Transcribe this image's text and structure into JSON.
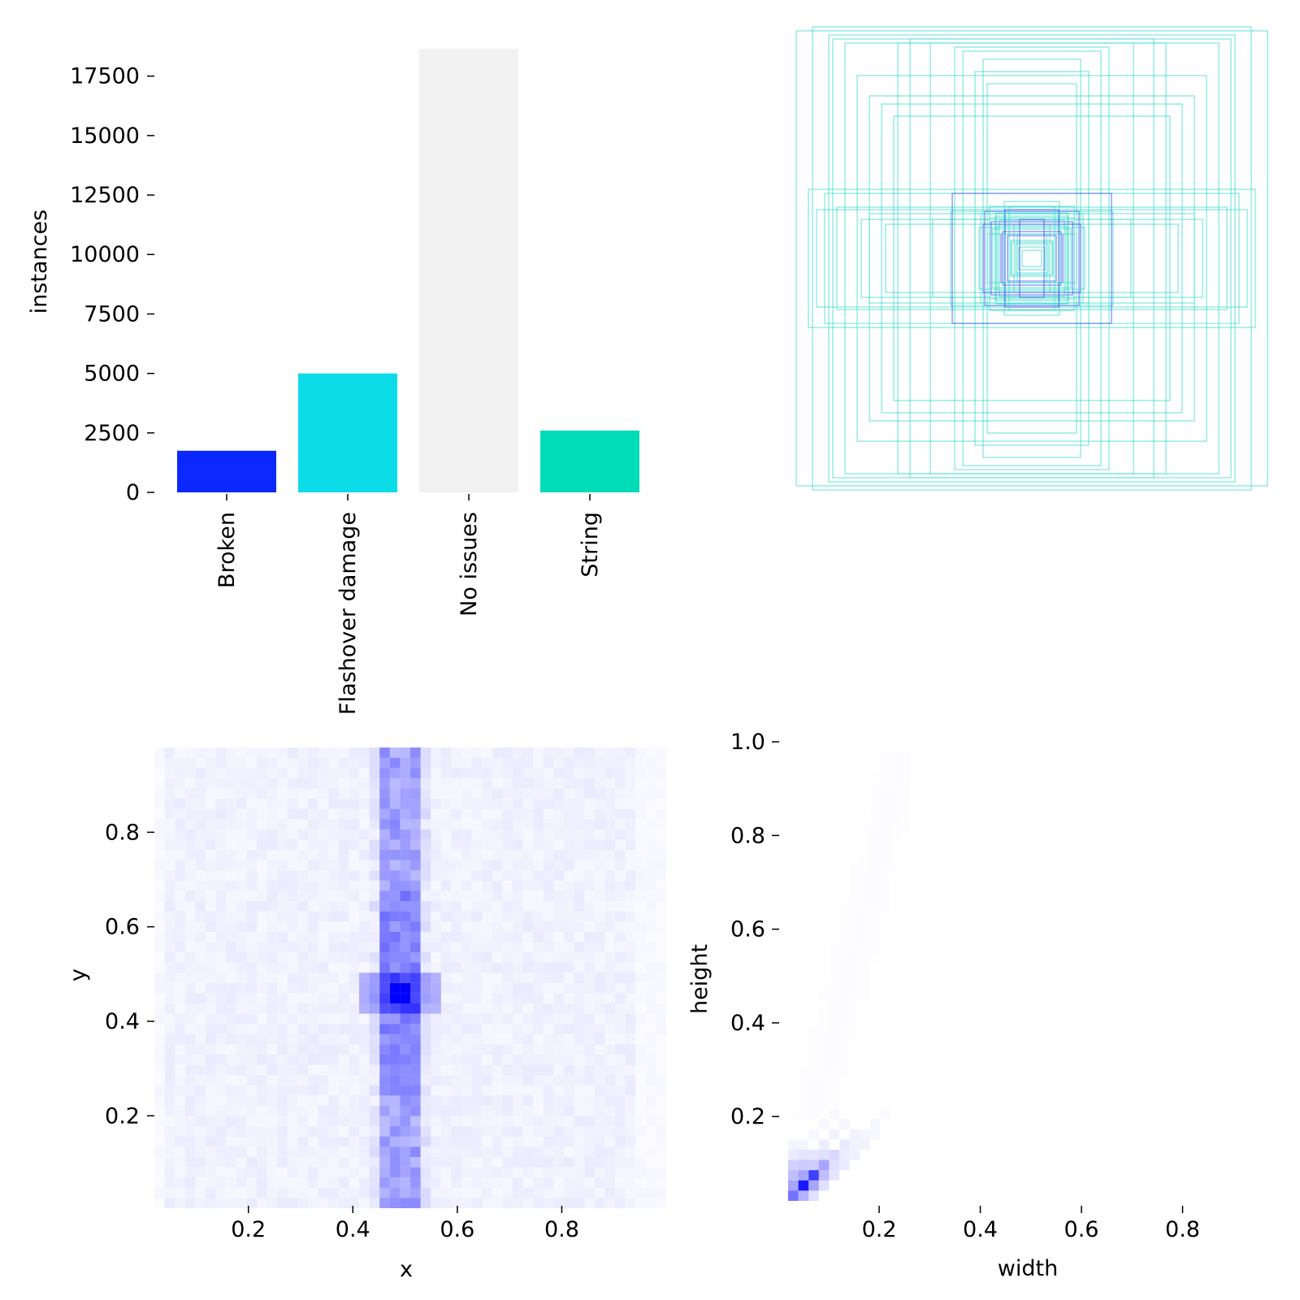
{
  "colors": {
    "broken": "#0a28ff",
    "flashover": "#0cdce8",
    "no_issues": "#f2f2f2",
    "string": "#00dcb8",
    "heat": "#0000ff",
    "box_cyan": "#2fd8c8",
    "box_blue": "#2a3cf0"
  },
  "chart_data": [
    {
      "type": "bar",
      "categories": [
        "Broken",
        "Flashover damage",
        "No issues",
        "String"
      ],
      "values": [
        1750,
        5000,
        18650,
        2600
      ],
      "xlabel": "",
      "ylabel": "instances",
      "ylim": [
        0,
        18650
      ],
      "yticks": [
        0,
        2500,
        5000,
        7500,
        10000,
        12500,
        15000,
        17500
      ],
      "grid": false
    },
    {
      "type": "scatter",
      "description_kind": "bounding-box-overlay",
      "xlabel": "",
      "ylabel": "",
      "grid": false,
      "axes": "off"
    },
    {
      "type": "heatmap",
      "xlabel": "x",
      "ylabel": "y",
      "xlim": [
        0.02,
        1.0
      ],
      "ylim": [
        0.02,
        1.0
      ],
      "xticks": [
        0.2,
        0.4,
        0.6,
        0.8
      ],
      "yticks": [
        0.2,
        0.4,
        0.6,
        0.8
      ],
      "grid": false
    },
    {
      "type": "heatmap",
      "xlabel": "width",
      "ylabel": "height",
      "xlim": [
        0.02,
        1.0
      ],
      "ylim": [
        0.02,
        1.0
      ],
      "xticks": [
        0.2,
        0.4,
        0.6,
        0.8
      ],
      "yticks": [
        0.2,
        0.4,
        0.6,
        0.8,
        1.0
      ],
      "grid": false
    }
  ]
}
